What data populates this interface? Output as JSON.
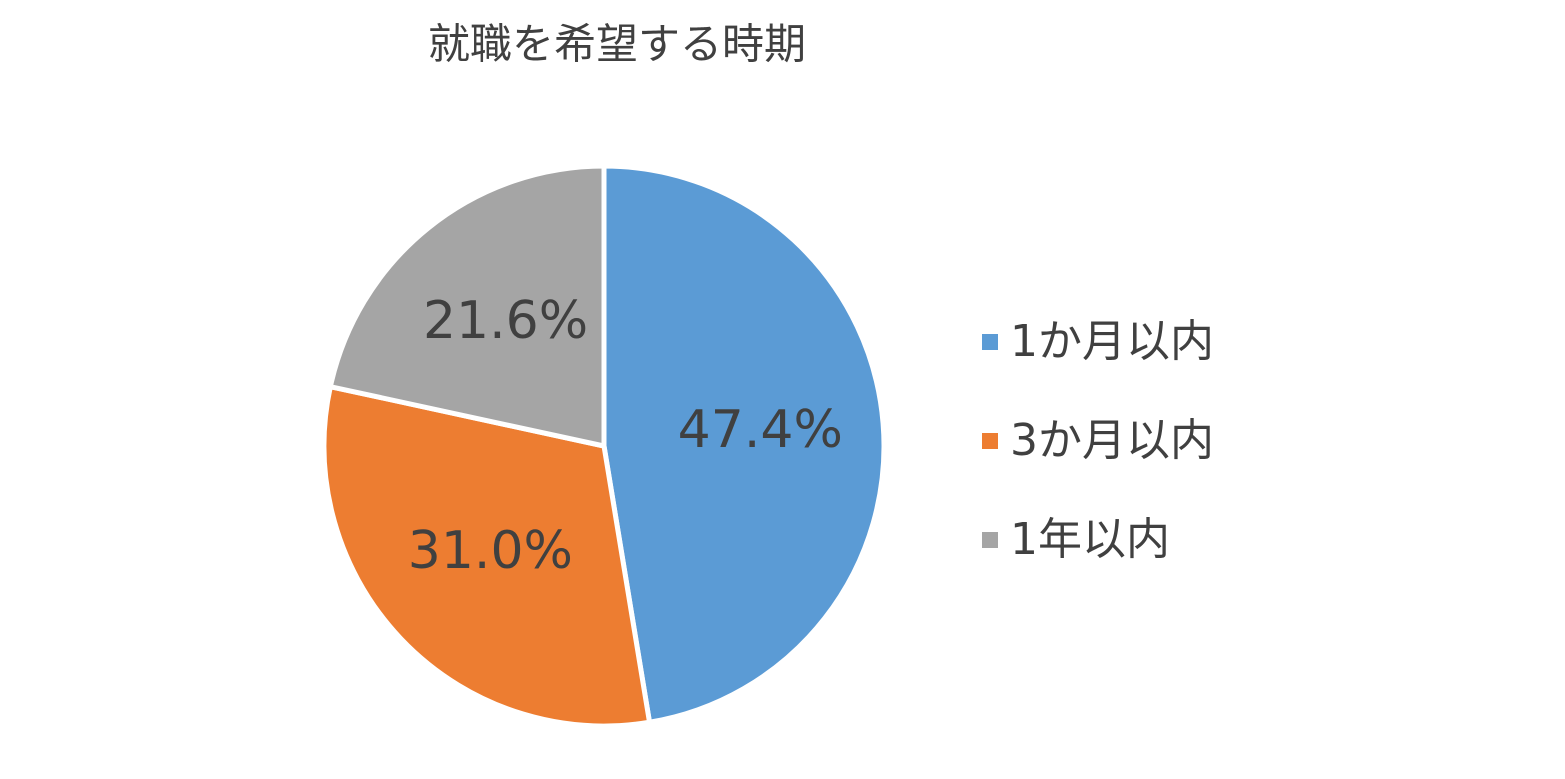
{
  "chart_data": {
    "type": "pie",
    "title": "就職を希望する時期",
    "categories": [
      "1か月以内",
      "3か月以内",
      "1年以内"
    ],
    "values": [
      47.4,
      31.0,
      21.6
    ],
    "value_labels": [
      "47.4%",
      "31.0%",
      "21.6%"
    ],
    "colors": [
      "#5b9bd5",
      "#ed7d31",
      "#a5a5a5"
    ],
    "legend": "right"
  }
}
